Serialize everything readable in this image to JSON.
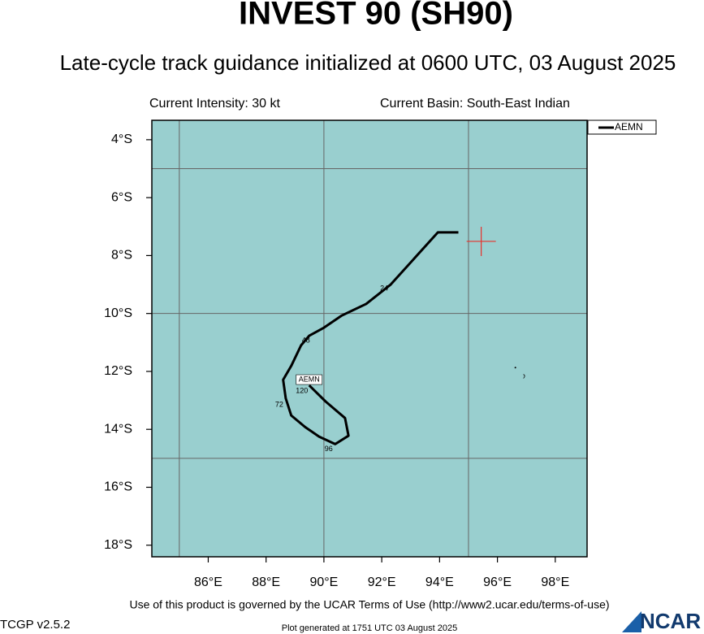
{
  "chart_data": {
    "type": "track",
    "title": "INVEST 90 (SH90)",
    "subtitle": "Late-cycle track guidance initialized at 0600 UTC, 03 August 2025",
    "intensity": "Current Intensity: 30 kt",
    "basin": "Current Basin: South-East Indian",
    "xlim": [
      84.05,
      99.1
    ],
    "ylim": [
      -18.4,
      -3.33
    ],
    "xticks": [
      {
        "value": 86,
        "label": "86°E"
      },
      {
        "value": 88,
        "label": "88°E"
      },
      {
        "value": 90,
        "label": "90°E"
      },
      {
        "value": 92,
        "label": "92°E"
      },
      {
        "value": 94,
        "label": "94°E"
      },
      {
        "value": 96,
        "label": "96°E"
      },
      {
        "value": 98,
        "label": "98°E"
      }
    ],
    "yticks": [
      {
        "value": -4,
        "label": "4°S"
      },
      {
        "value": -6,
        "label": "6°S"
      },
      {
        "value": -8,
        "label": "8°S"
      },
      {
        "value": -10,
        "label": "10°S"
      },
      {
        "value": -12,
        "label": "12°S"
      },
      {
        "value": -14,
        "label": "14°S"
      },
      {
        "value": -16,
        "label": "16°S"
      },
      {
        "value": -18,
        "label": "18°S"
      }
    ],
    "grid_lons": [
      85,
      90,
      95
    ],
    "grid_lats": [
      -5,
      -10,
      -15
    ],
    "background": "#99cfcf",
    "current_position": {
      "lon": 95.44,
      "lat": -7.51,
      "color": "#e8302a"
    },
    "series": [
      {
        "name": "AEMN",
        "color": "#000000",
        "lon": [
          94.65,
          93.94,
          92.31,
          91.46,
          90.62,
          90.0,
          89.49,
          89.21,
          88.87,
          88.59,
          88.68,
          88.87,
          89.35,
          89.83,
          90.39,
          90.85,
          90.73,
          90.06,
          89.49
        ],
        "lat": [
          -7.2,
          -7.2,
          -9.0,
          -9.67,
          -10.07,
          -10.49,
          -10.77,
          -11.1,
          -11.81,
          -12.29,
          -12.93,
          -13.52,
          -13.92,
          -14.25,
          -14.51,
          -14.22,
          -13.61,
          -13.04,
          -12.48
        ]
      }
    ],
    "hour_labels": [
      24,
      48,
      72,
      96,
      120
    ],
    "terms": "Use of this product is governed by the UCAR Terms of Use (http://www2.ucar.edu/terms-of-use)",
    "version": "TCGP v2.5.2",
    "generated": "Plot generated at 1751 UTC   03 August 2025",
    "logo": "NCAR"
  }
}
